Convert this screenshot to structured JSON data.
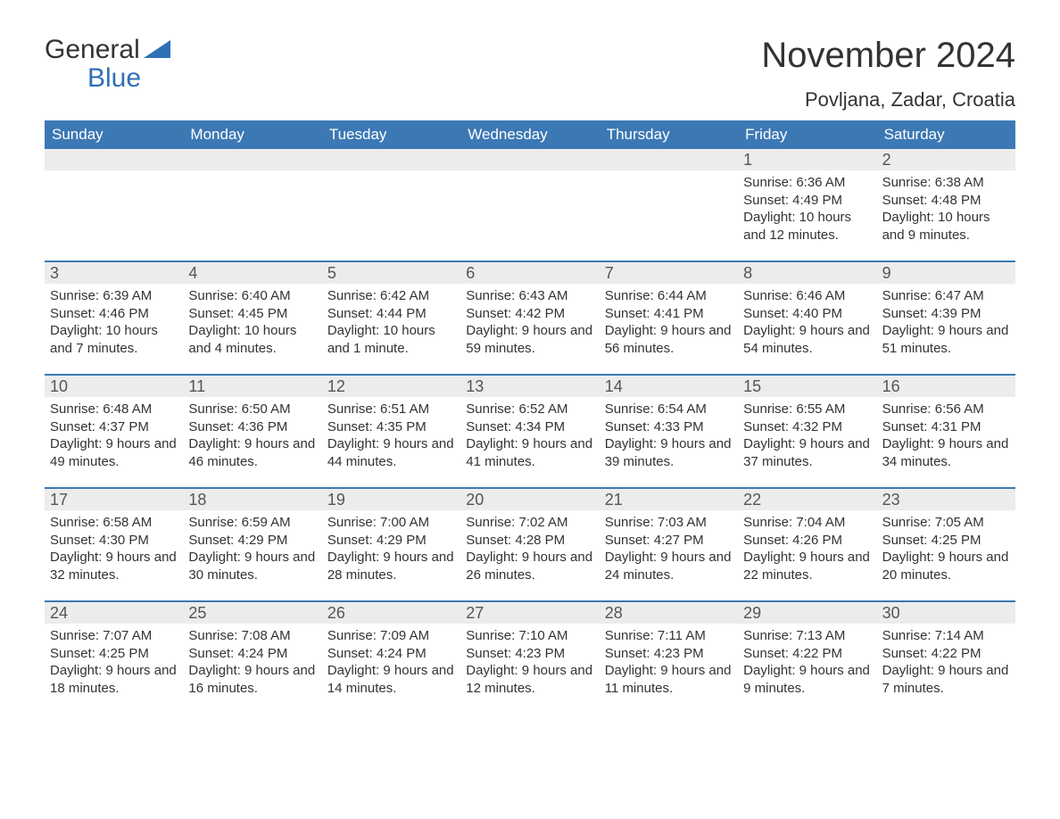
{
  "logo": {
    "word1": "General",
    "word2": "Blue"
  },
  "title": "November 2024",
  "location": "Povljana, Zadar, Croatia",
  "colors": {
    "header_bg": "#3c78b4",
    "header_text": "#ffffff",
    "daynum_bg": "#ececec",
    "border": "#3c78b4",
    "text": "#333333",
    "logo_blue": "#2f6fb5"
  },
  "day_names": [
    "Sunday",
    "Monday",
    "Tuesday",
    "Wednesday",
    "Thursday",
    "Friday",
    "Saturday"
  ],
  "weeks": [
    [
      {
        "empty": true
      },
      {
        "empty": true
      },
      {
        "empty": true
      },
      {
        "empty": true
      },
      {
        "empty": true
      },
      {
        "n": "1",
        "sunrise": "6:36 AM",
        "sunset": "4:49 PM",
        "daylight": "10 hours and 12 minutes."
      },
      {
        "n": "2",
        "sunrise": "6:38 AM",
        "sunset": "4:48 PM",
        "daylight": "10 hours and 9 minutes."
      }
    ],
    [
      {
        "n": "3",
        "sunrise": "6:39 AM",
        "sunset": "4:46 PM",
        "daylight": "10 hours and 7 minutes."
      },
      {
        "n": "4",
        "sunrise": "6:40 AM",
        "sunset": "4:45 PM",
        "daylight": "10 hours and 4 minutes."
      },
      {
        "n": "5",
        "sunrise": "6:42 AM",
        "sunset": "4:44 PM",
        "daylight": "10 hours and 1 minute."
      },
      {
        "n": "6",
        "sunrise": "6:43 AM",
        "sunset": "4:42 PM",
        "daylight": "9 hours and 59 minutes."
      },
      {
        "n": "7",
        "sunrise": "6:44 AM",
        "sunset": "4:41 PM",
        "daylight": "9 hours and 56 minutes."
      },
      {
        "n": "8",
        "sunrise": "6:46 AM",
        "sunset": "4:40 PM",
        "daylight": "9 hours and 54 minutes."
      },
      {
        "n": "9",
        "sunrise": "6:47 AM",
        "sunset": "4:39 PM",
        "daylight": "9 hours and 51 minutes."
      }
    ],
    [
      {
        "n": "10",
        "sunrise": "6:48 AM",
        "sunset": "4:37 PM",
        "daylight": "9 hours and 49 minutes."
      },
      {
        "n": "11",
        "sunrise": "6:50 AM",
        "sunset": "4:36 PM",
        "daylight": "9 hours and 46 minutes."
      },
      {
        "n": "12",
        "sunrise": "6:51 AM",
        "sunset": "4:35 PM",
        "daylight": "9 hours and 44 minutes."
      },
      {
        "n": "13",
        "sunrise": "6:52 AM",
        "sunset": "4:34 PM",
        "daylight": "9 hours and 41 minutes."
      },
      {
        "n": "14",
        "sunrise": "6:54 AM",
        "sunset": "4:33 PM",
        "daylight": "9 hours and 39 minutes."
      },
      {
        "n": "15",
        "sunrise": "6:55 AM",
        "sunset": "4:32 PM",
        "daylight": "9 hours and 37 minutes."
      },
      {
        "n": "16",
        "sunrise": "6:56 AM",
        "sunset": "4:31 PM",
        "daylight": "9 hours and 34 minutes."
      }
    ],
    [
      {
        "n": "17",
        "sunrise": "6:58 AM",
        "sunset": "4:30 PM",
        "daylight": "9 hours and 32 minutes."
      },
      {
        "n": "18",
        "sunrise": "6:59 AM",
        "sunset": "4:29 PM",
        "daylight": "9 hours and 30 minutes."
      },
      {
        "n": "19",
        "sunrise": "7:00 AM",
        "sunset": "4:29 PM",
        "daylight": "9 hours and 28 minutes."
      },
      {
        "n": "20",
        "sunrise": "7:02 AM",
        "sunset": "4:28 PM",
        "daylight": "9 hours and 26 minutes."
      },
      {
        "n": "21",
        "sunrise": "7:03 AM",
        "sunset": "4:27 PM",
        "daylight": "9 hours and 24 minutes."
      },
      {
        "n": "22",
        "sunrise": "7:04 AM",
        "sunset": "4:26 PM",
        "daylight": "9 hours and 22 minutes."
      },
      {
        "n": "23",
        "sunrise": "7:05 AM",
        "sunset": "4:25 PM",
        "daylight": "9 hours and 20 minutes."
      }
    ],
    [
      {
        "n": "24",
        "sunrise": "7:07 AM",
        "sunset": "4:25 PM",
        "daylight": "9 hours and 18 minutes."
      },
      {
        "n": "25",
        "sunrise": "7:08 AM",
        "sunset": "4:24 PM",
        "daylight": "9 hours and 16 minutes."
      },
      {
        "n": "26",
        "sunrise": "7:09 AM",
        "sunset": "4:24 PM",
        "daylight": "9 hours and 14 minutes."
      },
      {
        "n": "27",
        "sunrise": "7:10 AM",
        "sunset": "4:23 PM",
        "daylight": "9 hours and 12 minutes."
      },
      {
        "n": "28",
        "sunrise": "7:11 AM",
        "sunset": "4:23 PM",
        "daylight": "9 hours and 11 minutes."
      },
      {
        "n": "29",
        "sunrise": "7:13 AM",
        "sunset": "4:22 PM",
        "daylight": "9 hours and 9 minutes."
      },
      {
        "n": "30",
        "sunrise": "7:14 AM",
        "sunset": "4:22 PM",
        "daylight": "9 hours and 7 minutes."
      }
    ]
  ],
  "labels": {
    "sunrise": "Sunrise:",
    "sunset": "Sunset:",
    "daylight": "Daylight:"
  }
}
